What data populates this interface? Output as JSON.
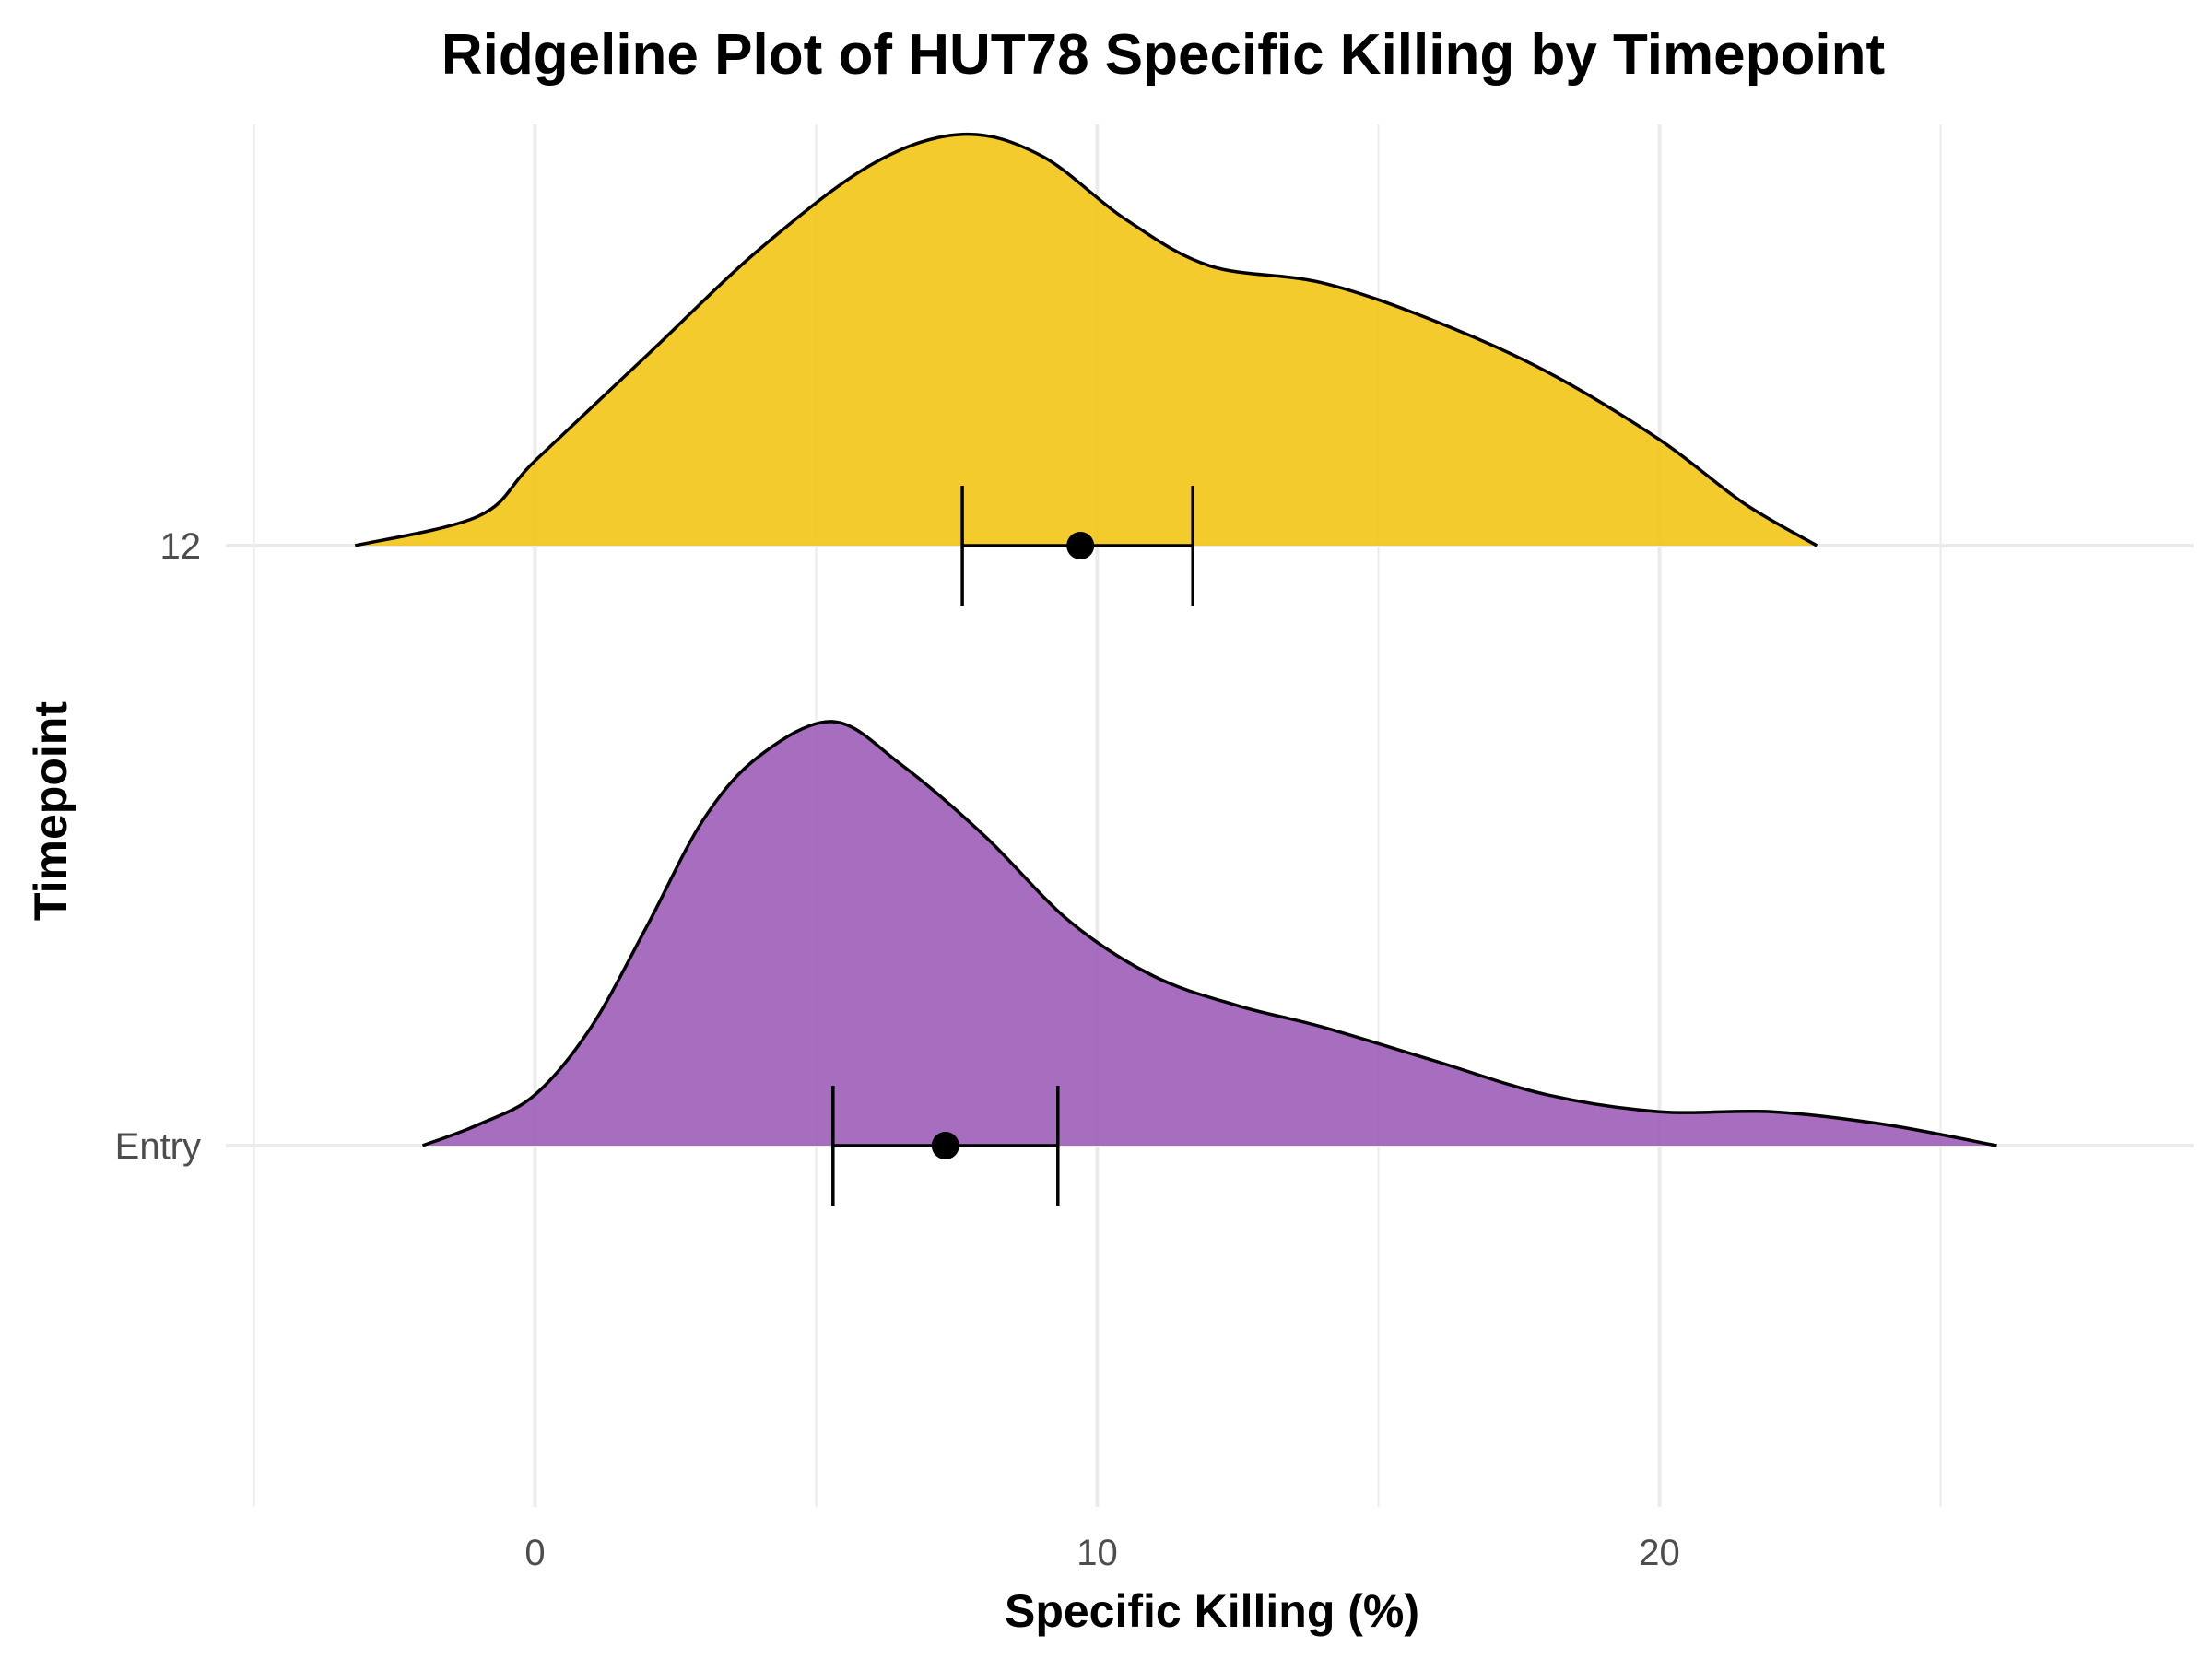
{
  "chart_data": {
    "type": "ridgeline",
    "title": "Ridgeline Plot of HUT78 Specific Killing by Timepoint",
    "xlabel": "Specific Killing (%)",
    "ylabel": "Timepoint",
    "xlim": [
      -5.5,
      29.5
    ],
    "x_ticks": [
      0,
      10,
      20
    ],
    "x_minor_ticks": [
      -5,
      5,
      15,
      25
    ],
    "grid": true,
    "series": [
      {
        "name": "Entry",
        "color": "#9B59B6",
        "mean": 7.3,
        "ci": [
          5.3,
          9.3
        ],
        "density": [
          [
            -2.0,
            0.0
          ],
          [
            -1.0,
            0.05
          ],
          [
            0.0,
            0.12
          ],
          [
            1.0,
            0.28
          ],
          [
            2.0,
            0.52
          ],
          [
            3.0,
            0.77
          ],
          [
            4.0,
            0.92
          ],
          [
            5.3,
            1.0
          ],
          [
            6.5,
            0.9
          ],
          [
            8.0,
            0.73
          ],
          [
            9.5,
            0.53
          ],
          [
            11.0,
            0.4
          ],
          [
            12.5,
            0.33
          ],
          [
            14.0,
            0.28
          ],
          [
            16.0,
            0.2
          ],
          [
            18.0,
            0.12
          ],
          [
            20.0,
            0.08
          ],
          [
            22.0,
            0.08
          ],
          [
            24.0,
            0.05
          ],
          [
            26.0,
            0.0
          ]
        ]
      },
      {
        "name": "12",
        "color": "#F1C40F",
        "mean": 9.7,
        "ci": [
          7.6,
          11.7
        ],
        "density": [
          [
            -3.2,
            0.0
          ],
          [
            -1.0,
            0.07
          ],
          [
            0.0,
            0.2
          ],
          [
            2.0,
            0.45
          ],
          [
            4.0,
            0.7
          ],
          [
            6.0,
            0.9
          ],
          [
            7.6,
            0.97
          ],
          [
            9.0,
            0.92
          ],
          [
            10.5,
            0.77
          ],
          [
            12.0,
            0.66
          ],
          [
            14.0,
            0.62
          ],
          [
            16.0,
            0.53
          ],
          [
            18.0,
            0.41
          ],
          [
            20.0,
            0.25
          ],
          [
            21.5,
            0.1
          ],
          [
            22.8,
            0.0
          ]
        ]
      }
    ]
  }
}
